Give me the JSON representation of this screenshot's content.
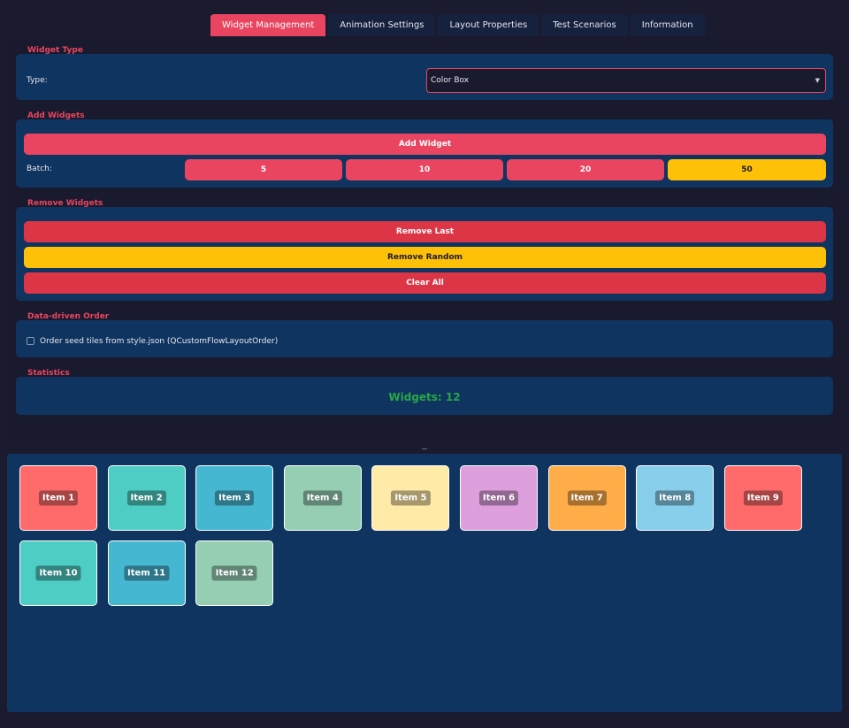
{
  "tabs": [
    "Widget Management",
    "Animation Settings",
    "Layout Properties",
    "Test Scenarios",
    "Information"
  ],
  "widget_type": {
    "title": "Widget Type",
    "type_label": "Type:",
    "selected": "Color Box"
  },
  "add_widgets": {
    "title": "Add Widgets",
    "add_button": "Add Widget",
    "batch_label": "Batch:",
    "batch_options": [
      "5",
      "10",
      "20",
      "50"
    ]
  },
  "remove_widgets": {
    "title": "Remove Widgets",
    "remove_last": "Remove Last",
    "remove_random": "Remove Random",
    "clear_all": "Clear All"
  },
  "data_order": {
    "title": "Data-driven Order",
    "checkbox_label": "Order seed tiles from style.json (QCustomFlowLayoutOrder)",
    "checked": false
  },
  "statistics": {
    "title": "Statistics",
    "count_text": "Widgets: 12"
  },
  "colors": {
    "accent": "#e94560",
    "danger": "#dc3545",
    "warning": "#ffc107",
    "success": "#28a745",
    "group_bg": "#0f3460"
  },
  "tiles": [
    {
      "label": "Item 1",
      "color": "#ff6b6b"
    },
    {
      "label": "Item 2",
      "color": "#4ecdc4"
    },
    {
      "label": "Item 3",
      "color": "#45b7d1"
    },
    {
      "label": "Item 4",
      "color": "#96ceb4"
    },
    {
      "label": "Item 5",
      "color": "#ffeaa7"
    },
    {
      "label": "Item 6",
      "color": "#dda0dd"
    },
    {
      "label": "Item 7",
      "color": "#ffad49"
    },
    {
      "label": "Item 8",
      "color": "#87ceeb"
    },
    {
      "label": "Item 9",
      "color": "#ff6b6b"
    },
    {
      "label": "Item 10",
      "color": "#4ecdc4"
    },
    {
      "label": "Item 11",
      "color": "#45b7d1"
    },
    {
      "label": "Item 12",
      "color": "#96ceb4"
    }
  ]
}
